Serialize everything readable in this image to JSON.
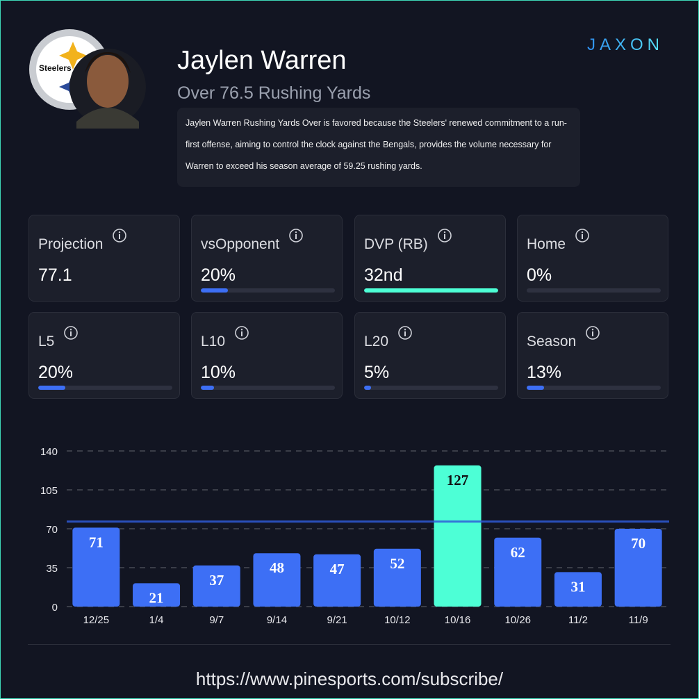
{
  "header": {
    "brand": "JAXON",
    "team": "Steelers",
    "name": "Jaylen Warren",
    "prop": "Over 76.5 Rushing Yards",
    "description": "Jaylen Warren Rushing Yards Over is favored because the Steelers' renewed commitment to a run-first offense, aiming to control the clock against the Bengals, provides the volume necessary for Warren to exceed his season average of 59.25 rushing yards."
  },
  "cards": [
    {
      "label": "Projection",
      "value": "77.1"
    },
    {
      "label": "vsOpponent",
      "value": "20%",
      "bar": 20,
      "bar_color": "#3d6ff5"
    },
    {
      "label": "DVP (RB)",
      "value": "32nd",
      "bar": 100,
      "bar_color": "#4dffd6"
    },
    {
      "label": "Home",
      "value": "0%",
      "bar": 0,
      "bar_color": "#3d6ff5"
    },
    {
      "label": "L5",
      "value": "20%",
      "bar": 20,
      "bar_color": "#3d6ff5"
    },
    {
      "label": "L10",
      "value": "10%",
      "bar": 10,
      "bar_color": "#3d6ff5"
    },
    {
      "label": "L20",
      "value": "5%",
      "bar": 5,
      "bar_color": "#3d6ff5"
    },
    {
      "label": "Season",
      "value": "13%",
      "bar": 13,
      "bar_color": "#3d6ff5"
    }
  ],
  "chart_data": {
    "type": "bar",
    "categories": [
      "12/25",
      "1/4",
      "9/7",
      "9/14",
      "9/21",
      "10/12",
      "10/16",
      "10/26",
      "11/2",
      "11/9"
    ],
    "values": [
      71,
      21,
      37,
      48,
      47,
      52,
      127,
      62,
      31,
      70
    ],
    "colors": [
      "#3d6ff5",
      "#3d6ff5",
      "#3d6ff5",
      "#3d6ff5",
      "#3d6ff5",
      "#3d6ff5",
      "#4dffd6",
      "#3d6ff5",
      "#3d6ff5",
      "#3d6ff5"
    ],
    "label_colors": [
      "#ffffff",
      "#ffffff",
      "#ffffff",
      "#ffffff",
      "#ffffff",
      "#ffffff",
      "#111111",
      "#ffffff",
      "#ffffff",
      "#ffffff"
    ],
    "ylim": [
      0,
      140
    ],
    "yticks": [
      0,
      35,
      70,
      105,
      140
    ],
    "grid": true,
    "line_value": 76.5,
    "line_color": "#2f5bd8"
  },
  "footer": {
    "url": "https://www.pinesports.com/subscribe/"
  }
}
